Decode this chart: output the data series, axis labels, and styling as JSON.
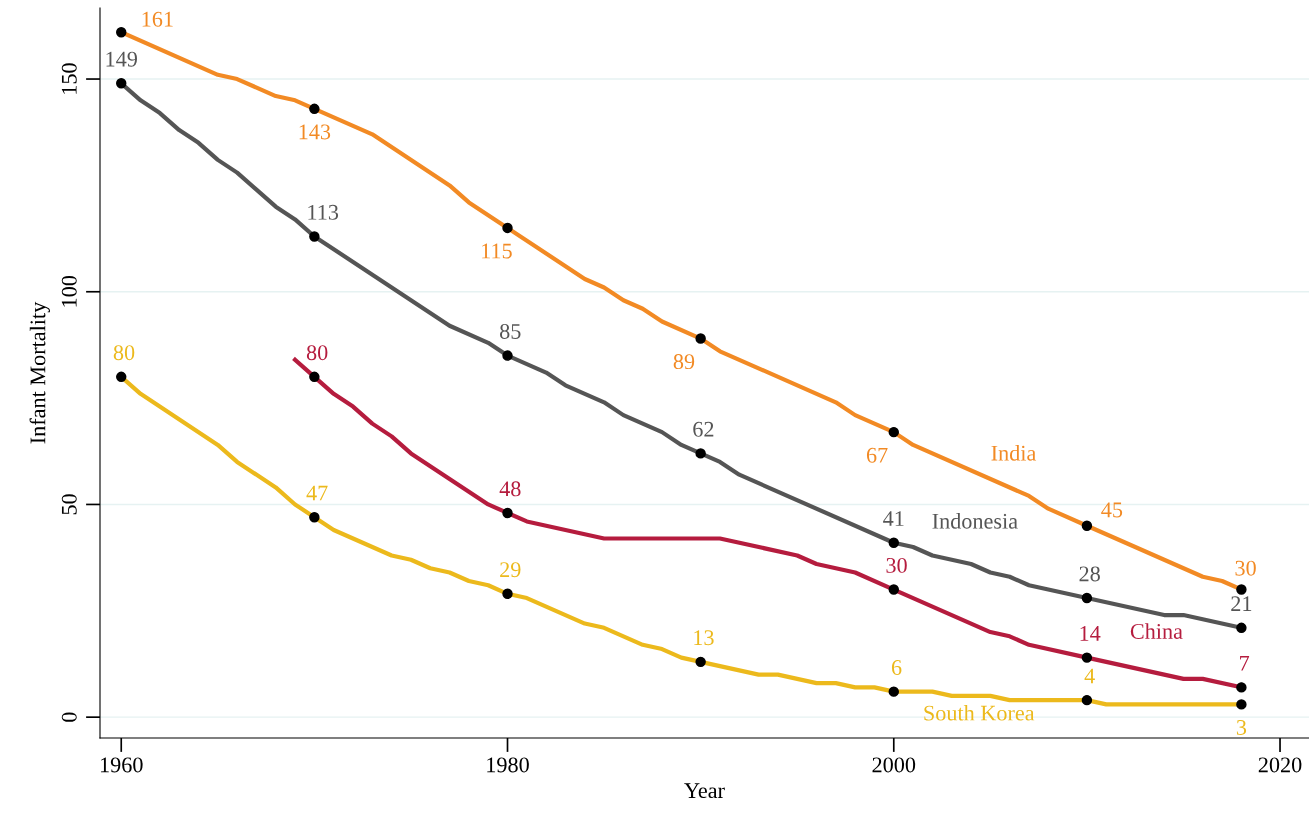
{
  "chart_data": {
    "type": "line",
    "xlabel": "Year",
    "ylabel": "Infant Mortality",
    "xlim": [
      1958.9,
      2021.5
    ],
    "ylim": [
      -4.9,
      166.7
    ],
    "xticks": [
      1960,
      1980,
      2000,
      2020
    ],
    "yticks": [
      0,
      50,
      100,
      150
    ],
    "grid": "y",
    "series": [
      {
        "name": "India",
        "color": "#f28a24",
        "x": [
          1960,
          1965,
          1966,
          1968,
          1969,
          1970,
          1973,
          1977,
          1978,
          1980,
          1984,
          1985,
          1986,
          1987,
          1988,
          1990,
          1991,
          1997,
          1998,
          2000,
          2001,
          2007,
          2008,
          2010,
          2016,
          2017,
          2018
        ],
        "values": [
          161,
          151,
          150,
          146,
          145,
          143,
          137,
          125,
          121,
          115,
          103,
          101,
          98,
          96,
          93,
          89,
          86,
          74,
          71,
          67,
          64,
          52,
          49,
          45,
          33,
          32,
          30
        ],
        "value_labels": [
          "161",
          null,
          null,
          null,
          null,
          "143",
          null,
          null,
          null,
          "115",
          null,
          null,
          null,
          null,
          null,
          "89",
          null,
          null,
          null,
          "67",
          null,
          null,
          null,
          "45",
          null,
          null,
          "30"
        ]
      },
      {
        "name": "Indonesia",
        "color": "#555555",
        "x": [
          1960,
          1961,
          1962,
          1963,
          1964,
          1965,
          1966,
          1967,
          1968,
          1969,
          1970,
          1977,
          1979,
          1980,
          1982,
          1983,
          1985,
          1986,
          1988,
          1989,
          1990,
          1991,
          1992,
          2000,
          2001,
          2002,
          2004,
          2005,
          2006,
          2007,
          2010,
          2014,
          2015,
          2018
        ],
        "values": [
          149,
          145,
          142,
          138,
          135,
          131,
          128,
          124,
          120,
          117,
          113,
          92,
          88,
          85,
          81,
          78,
          74,
          71,
          67,
          64,
          62,
          60,
          57,
          41,
          40,
          38,
          36,
          34,
          33,
          31,
          28,
          24,
          24,
          21
        ],
        "value_labels": [
          "149",
          null,
          null,
          null,
          null,
          null,
          null,
          null,
          null,
          null,
          "113",
          null,
          null,
          "85",
          null,
          null,
          null,
          null,
          null,
          null,
          "62",
          null,
          null,
          "41",
          null,
          null,
          null,
          null,
          null,
          null,
          "28",
          null,
          null,
          "21"
        ]
      },
      {
        "name": "China",
        "color": "#b51c3e",
        "x": [
          1969,
          1970,
          1971,
          1972,
          1973,
          1974,
          1975,
          1979,
          1980,
          1981,
          1985,
          1991,
          1995,
          1996,
          1998,
          2000,
          2005,
          2006,
          2007,
          2010,
          2015,
          2016,
          2018
        ],
        "values": [
          84,
          80,
          76,
          73,
          69,
          66,
          62,
          50,
          48,
          46,
          42,
          42,
          38,
          36,
          34,
          30,
          20,
          19,
          17,
          14,
          9,
          9,
          7
        ],
        "value_labels": [
          null,
          "80",
          null,
          null,
          null,
          null,
          null,
          null,
          "48",
          null,
          null,
          null,
          null,
          null,
          null,
          "30",
          null,
          null,
          null,
          "14",
          null,
          null,
          "7"
        ]
      },
      {
        "name": "South Korea",
        "color": "#ecb91c",
        "x": [
          1960,
          1961,
          1965,
          1966,
          1968,
          1969,
          1970,
          1971,
          1974,
          1975,
          1976,
          1977,
          1978,
          1979,
          1980,
          1981,
          1984,
          1985,
          1987,
          1988,
          1989,
          1990,
          1993,
          1994,
          1996,
          1997,
          1998,
          1999,
          2000,
          2002,
          2003,
          2005,
          2006,
          2010,
          2011,
          2018
        ],
        "values": [
          80,
          76,
          64,
          60,
          54,
          50,
          47,
          44,
          38,
          37,
          35,
          34,
          32,
          31,
          29,
          28,
          22,
          21,
          17,
          16,
          14,
          13,
          10,
          10,
          8,
          8,
          7,
          7,
          6,
          6,
          5,
          5,
          4,
          4,
          3,
          3
        ],
        "value_labels": [
          "80",
          null,
          null,
          null,
          null,
          null,
          "47",
          null,
          null,
          null,
          null,
          null,
          null,
          null,
          "29",
          null,
          null,
          null,
          null,
          null,
          null,
          "13",
          null,
          null,
          null,
          null,
          null,
          null,
          "6",
          null,
          null,
          null,
          null,
          "4",
          null,
          "3"
        ]
      }
    ]
  }
}
